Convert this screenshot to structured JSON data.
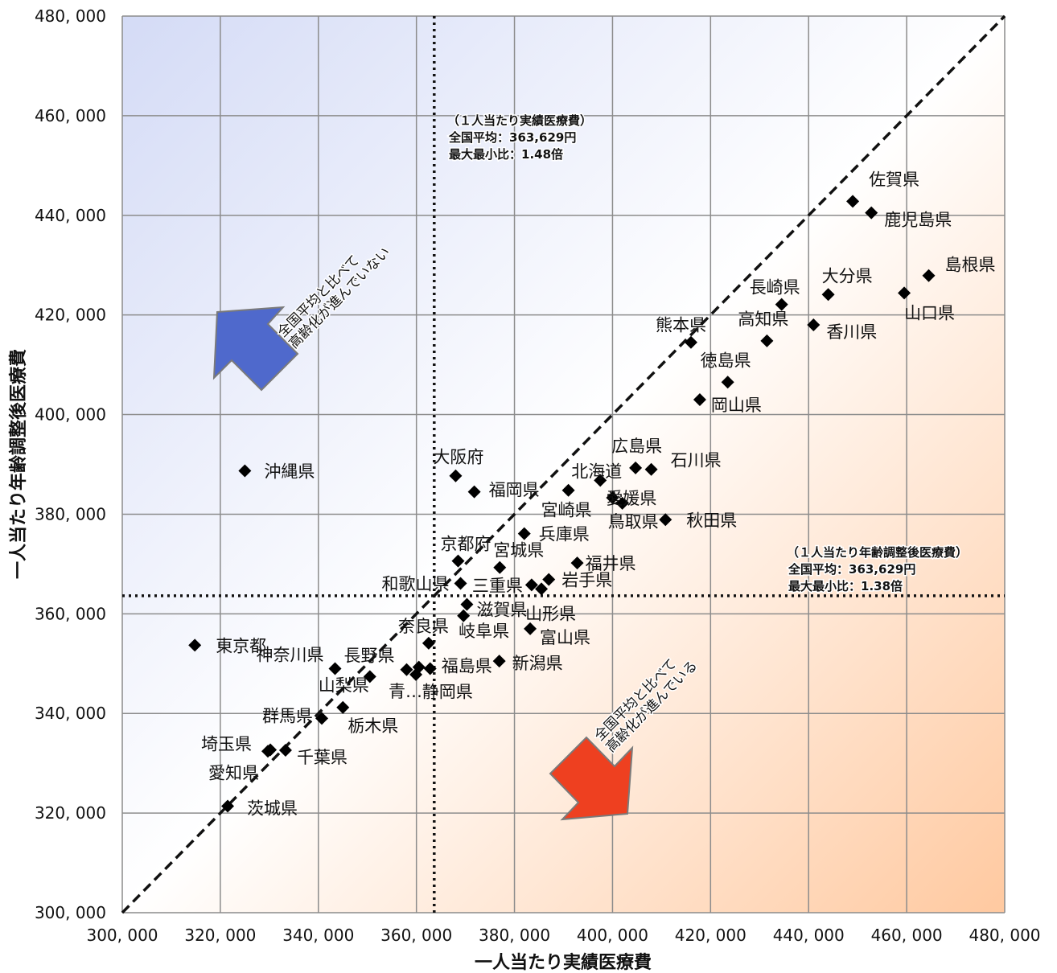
{
  "chart_data": {
    "type": "scatter",
    "title": "",
    "xlabel": "一人当たり実績医療費",
    "ylabel": "一人当たり年齢調整後医療費",
    "xlim": [
      300000,
      480000
    ],
    "ylim": [
      300000,
      480000
    ],
    "x_ticks": [
      "300, 000",
      "320, 000",
      "340, 000",
      "360, 000",
      "380, 000",
      "400, 000",
      "420, 000",
      "440, 000",
      "460, 000",
      "480, 000"
    ],
    "y_ticks": [
      "300, 000",
      "320, 000",
      "340, 000",
      "360, 000",
      "380, 000",
      "400, 000",
      "420, 000",
      "440, 000",
      "460, 000",
      "480, 000"
    ],
    "grid": true,
    "reference_lines": {
      "diagonal": "y = x",
      "vertical_mean_x": 363629,
      "horizontal_mean_y": 363629
    },
    "points": [
      {
        "name": "佐賀県",
        "x": 449000,
        "y": 442800
      },
      {
        "name": "鹿児島県",
        "x": 452800,
        "y": 440500
      },
      {
        "name": "島根県",
        "x": 464500,
        "y": 427900
      },
      {
        "name": "大分県",
        "x": 444000,
        "y": 424100
      },
      {
        "name": "山口県",
        "x": 459500,
        "y": 424400
      },
      {
        "name": "長崎県",
        "x": 434500,
        "y": 422100
      },
      {
        "name": "香川県",
        "x": 441000,
        "y": 418000
      },
      {
        "name": "高知県",
        "x": 431500,
        "y": 414800
      },
      {
        "name": "熊本県",
        "x": 416000,
        "y": 414500
      },
      {
        "name": "徳島県",
        "x": 423500,
        "y": 406500
      },
      {
        "name": "岡山県",
        "x": 417800,
        "y": 403000
      },
      {
        "name": "沖縄県",
        "x": 325000,
        "y": 388700
      },
      {
        "name": "大阪府",
        "x": 368000,
        "y": 387700
      },
      {
        "name": "福岡県",
        "x": 371800,
        "y": 384500
      },
      {
        "name": "広島県",
        "x": 404700,
        "y": 389300
      },
      {
        "name": "石川県",
        "x": 407900,
        "y": 389000
      },
      {
        "name": "北海道",
        "x": 397500,
        "y": 386800
      },
      {
        "name": "宮崎県",
        "x": 391000,
        "y": 384800
      },
      {
        "name": "愛媛県",
        "x": 400000,
        "y": 383300
      },
      {
        "name": "鳥取県",
        "x": 402000,
        "y": 382200
      },
      {
        "name": "秋田県",
        "x": 410800,
        "y": 378900
      },
      {
        "name": "兵庫県",
        "x": 382000,
        "y": 376100
      },
      {
        "name": "京都府",
        "x": 368500,
        "y": 370600
      },
      {
        "name": "宮城県",
        "x": 377000,
        "y": 369300
      },
      {
        "name": "福井県",
        "x": 392800,
        "y": 370200
      },
      {
        "name": "和歌山県",
        "x": 369000,
        "y": 366100
      },
      {
        "name": "三重県",
        "x": 383500,
        "y": 365800
      },
      {
        "name": "岩手県",
        "x": 387000,
        "y": 366900
      },
      {
        "name": "山形県",
        "x": 385500,
        "y": 365000
      },
      {
        "name": "滋賀県",
        "x": 370300,
        "y": 361900
      },
      {
        "name": "岐阜県",
        "x": 369600,
        "y": 359600
      },
      {
        "name": "富山県",
        "x": 383200,
        "y": 357000
      },
      {
        "name": "東京都",
        "x": 314800,
        "y": 353700
      },
      {
        "name": "奈良県",
        "x": 362500,
        "y": 354100
      },
      {
        "name": "神奈川県",
        "x": 343400,
        "y": 349000
      },
      {
        "name": "長野県",
        "x": 358000,
        "y": 348800
      },
      {
        "name": "福島県",
        "x": 362800,
        "y": 349000
      },
      {
        "name": "新潟県",
        "x": 376900,
        "y": 350500
      },
      {
        "name": "青…",
        "x": 359900,
        "y": 347800
      },
      {
        "name": "静岡県",
        "x": 360500,
        "y": 349300
      },
      {
        "name": "山梨県",
        "x": 350500,
        "y": 347400
      },
      {
        "name": "栃木県",
        "x": 345000,
        "y": 341200
      },
      {
        "name": "群馬県",
        "x": 340700,
        "y": 339000
      },
      {
        "name": "埼玉県",
        "x": 330200,
        "y": 332700
      },
      {
        "name": "千葉県",
        "x": 333300,
        "y": 332600
      },
      {
        "name": "愛知県",
        "x": 329700,
        "y": 332400
      },
      {
        "name": "茨城県",
        "x": 321500,
        "y": 321400
      }
    ],
    "annotations": {
      "x_mean": {
        "line1": "（１人当たり実績医療費）",
        "line2": "全国平均：363,629円",
        "line3": "最大最小比：1.48倍"
      },
      "y_mean": {
        "line1": "（１人当たり年齢調整後医療費）",
        "line2": "全国平均：363,629円",
        "line3": "最大最小比：1.38倍"
      },
      "blue_arrow": {
        "line1": "全国平均と比べて",
        "line2": "高齢化が進んでいない",
        "color": "#4f69cc"
      },
      "red_arrow": {
        "line1": "全国平均と比べて",
        "line2": "高齢化が進んでいる",
        "color": "#ee4020"
      }
    },
    "colors": {
      "marker": "#000000",
      "background_top_left": "#d4dbf6",
      "background_bottom_right": "#ffc9a0"
    }
  }
}
